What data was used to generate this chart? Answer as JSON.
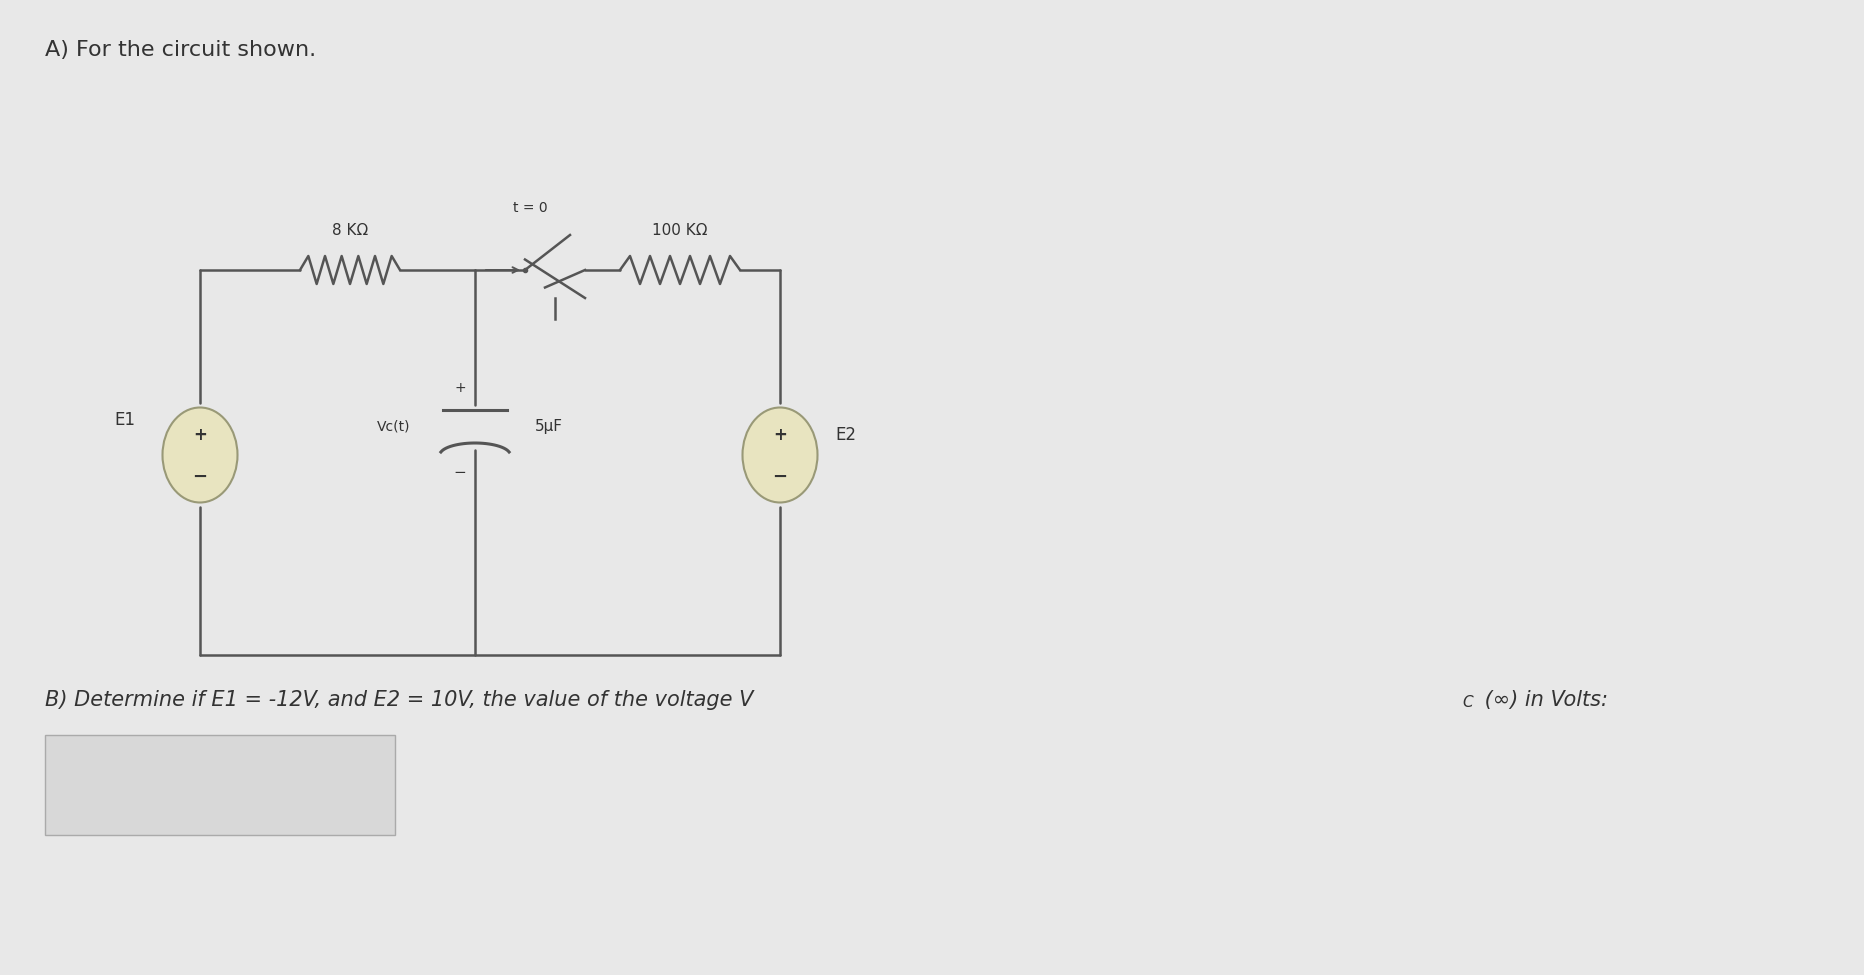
{
  "bg_color": "#e8e8e8",
  "title_a": "A) For the circuit shown.",
  "label_8k": "8 KΩ",
  "label_100k": "100 KΩ",
  "label_t0": "t = 0",
  "label_vc": "Vc(t)",
  "label_cap": "5μF",
  "label_E1": "E1",
  "label_E2": "E2",
  "label_plus": "+",
  "label_minus": "−",
  "wire_color": "#555555",
  "source_fill": "#e8e4c0",
  "source_edge": "#999977",
  "text_color": "#333333",
  "title_b_main": "B) Determine if E1 = -12V, and E2 = 10V, the value of the voltage V",
  "title_b_sub": "C",
  "title_b_end": " (∞) in Volts:",
  "ans_box_color": "#d8d8d8"
}
